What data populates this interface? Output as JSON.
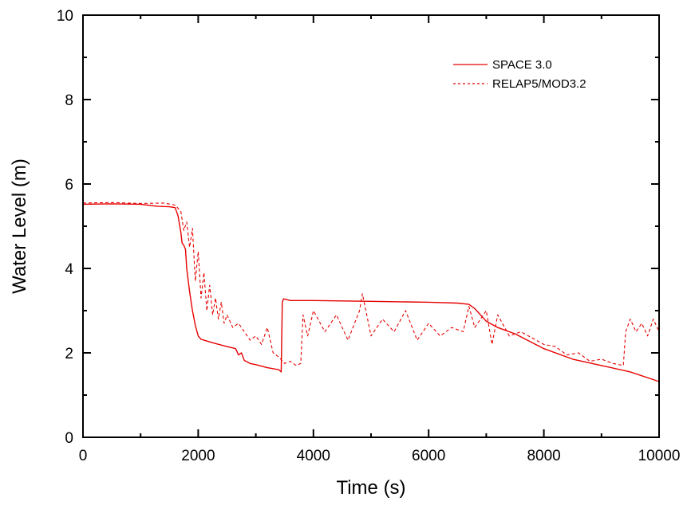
{
  "chart_data": {
    "type": "line",
    "title": "",
    "xlabel": "Time (s)",
    "ylabel": "Water Level (m)",
    "xlim": [
      0,
      10000
    ],
    "ylim": [
      0,
      10
    ],
    "x_ticks": [
      0,
      2000,
      4000,
      6000,
      8000,
      10000
    ],
    "x_tick_labels": [
      "0",
      "2000",
      "4000",
      "6000",
      "8000",
      "10000"
    ],
    "x_minor_step": 1000,
    "y_ticks": [
      0,
      2,
      4,
      6,
      8,
      10
    ],
    "y_tick_labels": [
      "0",
      "2",
      "4",
      "6",
      "8",
      "10"
    ],
    "y_minor_step": 1,
    "grid": false,
    "legend_position": "top-right",
    "series": [
      {
        "name": "SPACE 3.0",
        "style": "solid",
        "color": "#e60000",
        "x": [
          0,
          500,
          1000,
          1300,
          1500,
          1600,
          1650,
          1700,
          1720,
          1750,
          1780,
          1800,
          1850,
          1900,
          1950,
          2000,
          2050,
          2100,
          2300,
          2500,
          2650,
          2700,
          2750,
          2800,
          2900,
          3000,
          3200,
          3400,
          3440,
          3460,
          3480,
          3600,
          4000,
          4500,
          5000,
          5500,
          6000,
          6500,
          6700,
          6800,
          7000,
          7200,
          7500,
          8000,
          8500,
          9000,
          9500,
          10000
        ],
        "y": [
          5.52,
          5.53,
          5.52,
          5.47,
          5.46,
          5.44,
          5.25,
          4.85,
          4.6,
          4.55,
          4.45,
          4.0,
          3.45,
          3.0,
          2.65,
          2.4,
          2.32,
          2.3,
          2.22,
          2.15,
          2.1,
          1.95,
          2.0,
          1.82,
          1.75,
          1.72,
          1.65,
          1.6,
          1.55,
          3.2,
          3.28,
          3.24,
          3.24,
          3.23,
          3.22,
          3.21,
          3.2,
          3.18,
          3.15,
          3.05,
          2.75,
          2.6,
          2.45,
          2.1,
          1.85,
          1.7,
          1.55,
          1.32
        ]
      },
      {
        "name": "RELAP5/MOD3.2",
        "style": "dashed",
        "color": "#e60000",
        "x": [
          0,
          500,
          1000,
          1400,
          1600,
          1700,
          1750,
          1800,
          1850,
          1900,
          1950,
          2000,
          2050,
          2100,
          2150,
          2200,
          2250,
          2300,
          2350,
          2400,
          2450,
          2500,
          2600,
          2700,
          2800,
          2900,
          3000,
          3100,
          3200,
          3300,
          3400,
          3500,
          3600,
          3700,
          3780,
          3820,
          3900,
          4000,
          4200,
          4400,
          4600,
          4800,
          4850,
          5000,
          5200,
          5400,
          5600,
          5800,
          6000,
          6200,
          6400,
          6600,
          6700,
          6800,
          7000,
          7100,
          7200,
          7400,
          7600,
          7800,
          8000,
          8200,
          8400,
          8600,
          8800,
          9000,
          9200,
          9380,
          9420,
          9500,
          9600,
          9700,
          9800,
          9900,
          10000
        ],
        "y": [
          5.55,
          5.56,
          5.54,
          5.55,
          5.5,
          5.35,
          4.9,
          5.1,
          4.5,
          4.95,
          3.7,
          4.4,
          3.3,
          3.9,
          3.0,
          3.6,
          2.9,
          3.3,
          2.8,
          3.2,
          2.7,
          2.9,
          2.6,
          2.7,
          2.5,
          2.3,
          2.4,
          2.2,
          2.6,
          2.0,
          1.9,
          1.75,
          1.8,
          1.7,
          1.75,
          2.9,
          2.4,
          3.0,
          2.5,
          2.9,
          2.3,
          3.0,
          3.4,
          2.4,
          2.8,
          2.5,
          3.0,
          2.3,
          2.7,
          2.4,
          2.6,
          2.5,
          3.1,
          2.6,
          3.0,
          2.2,
          2.9,
          2.4,
          2.5,
          2.35,
          2.2,
          2.15,
          1.95,
          2.0,
          1.8,
          1.85,
          1.75,
          1.7,
          2.5,
          2.8,
          2.5,
          2.7,
          2.4,
          2.8,
          2.5
        ]
      }
    ]
  }
}
